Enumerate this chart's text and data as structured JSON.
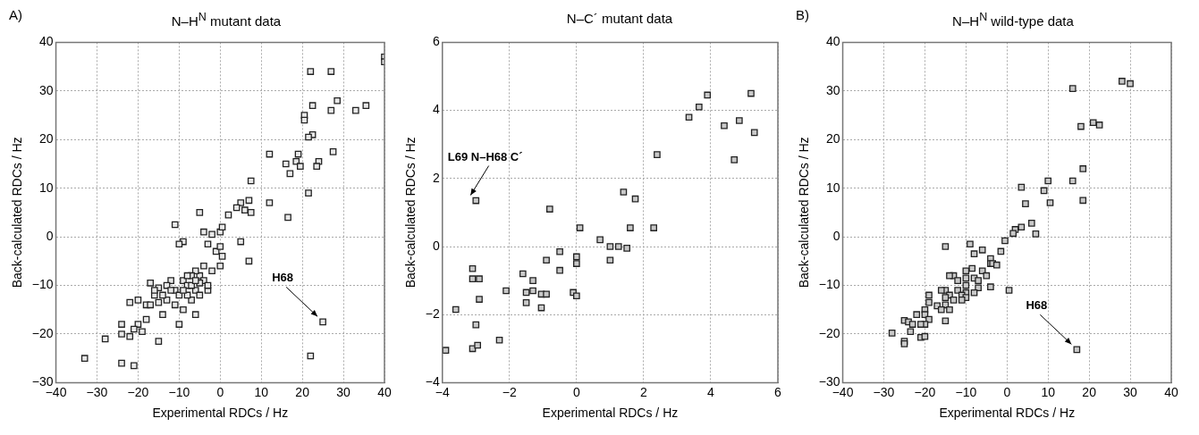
{
  "chart_data": [
    {
      "type": "scatter",
      "title": "N–H$^{N}$ mutant data",
      "xlabel": "Experimental RDCs / Hz",
      "ylabel": "Back-calculated RDCs / Hz",
      "marker": "square",
      "grid": true,
      "legend": false,
      "xlim": [
        -40,
        40
      ],
      "xticks": [
        -40,
        -30,
        -20,
        -10,
        0,
        10,
        20,
        30,
        40
      ],
      "ylim": [
        -30,
        40
      ],
      "yticks": [
        -30,
        -20,
        -10,
        0,
        10,
        20,
        30,
        40
      ],
      "annotations": [
        "A)",
        {
          "text": "H68",
          "x": 25,
          "y": -17.5
        }
      ],
      "series": [
        {
          "color": "#e8e8e8",
          "x": [
            22,
            27,
            40,
            40,
            22.5,
            28.5,
            27,
            33,
            35.5,
            20.5,
            20.5,
            22.5,
            21.5,
            12,
            19,
            16,
            18.5,
            19.5,
            24,
            23.5,
            17,
            27.5,
            7.5,
            21.5,
            12,
            16.5,
            5,
            7,
            6,
            7.5,
            -5,
            -11,
            4,
            2,
            5,
            7,
            0,
            0.5,
            -4,
            -2,
            -9,
            -10,
            -3,
            -1,
            0,
            0.5,
            0,
            -2,
            -4,
            -5,
            -6,
            -7,
            -9,
            -12,
            -13,
            -17,
            -15,
            -11,
            -10,
            -8,
            -6,
            -4,
            -3,
            -5,
            -7,
            -11,
            -13,
            -16,
            -18,
            -20,
            -22,
            -14,
            -17,
            -9,
            -10,
            -6,
            -18,
            -20,
            -21,
            -24,
            -24,
            -22,
            -19,
            -28,
            -15,
            -33,
            -24,
            -21,
            22,
            25,
            -14,
            -15,
            -12,
            -8,
            -7,
            -8,
            -16,
            -9,
            -5,
            -3,
            -6
          ],
          "values": [
            34,
            34,
            37,
            36,
            27,
            28,
            26,
            26,
            27,
            25,
            24,
            21,
            20.5,
            17,
            17,
            15,
            15.5,
            14.5,
            15.5,
            14.5,
            13,
            17.5,
            11.5,
            9,
            7,
            4,
            7,
            7.5,
            5.5,
            5,
            5,
            2.5,
            6,
            4.5,
            -1,
            -5,
            1,
            2,
            1,
            0.5,
            -1,
            -1.5,
            -1.5,
            -3,
            -2,
            -4,
            -6,
            -7,
            -6,
            -8,
            -7,
            -8,
            -9,
            -9,
            -10,
            -9.5,
            -10.5,
            -11,
            -12,
            -10,
            -11,
            -9,
            -11,
            -12,
            -13,
            -14,
            -13,
            -12,
            -14,
            -13,
            -13.5,
            -16,
            -14,
            -15,
            -18,
            -16,
            -17,
            -18,
            -19,
            -18,
            -20,
            -20.5,
            -19.5,
            -21,
            -21.5,
            -25,
            -26,
            -26.5,
            -24.5,
            -17.5,
            -12,
            -13.5,
            -11,
            -8,
            -10,
            -12,
            -11,
            -11,
            -9.5,
            -10,
            -9
          ]
        }
      ]
    },
    {
      "type": "scatter",
      "title": "N–C´ mutant data",
      "xlabel": "Experimental RDCs / Hz",
      "ylabel": "Back-calculated RDCs / Hz",
      "marker": "square",
      "grid": true,
      "legend": false,
      "xlim": [
        -4,
        6
      ],
      "xticks": [
        -4,
        -2,
        0,
        2,
        4,
        6
      ],
      "ylim": [
        -4,
        6
      ],
      "yticks": [
        -4,
        -2,
        0,
        2,
        4,
        6
      ],
      "annotations": [
        {
          "text": "L69 N–H68 C´",
          "x": -3,
          "y": 1.35
        }
      ],
      "series": [
        {
          "color": "#c8c8c8",
          "x": [
            3.9,
            5.2,
            3.65,
            3.35,
            4.4,
            4.85,
            5.3,
            4.7,
            2.4,
            -3,
            -0.8,
            1.4,
            1.75,
            0.1,
            1.6,
            2.3,
            0.7,
            1,
            1.25,
            1.5,
            -0.5,
            0,
            0,
            -0.9,
            1,
            -0.5,
            -3.1,
            -3.1,
            -2.9,
            -1.6,
            -1.3,
            -2.1,
            -1.5,
            -1.3,
            -1.05,
            -0.9,
            -0.1,
            0,
            -2.9,
            -1.5,
            -1.05,
            -3.6,
            -3,
            -2.3,
            -3.9,
            -3.1,
            -2.95
          ],
          "values": [
            4.45,
            4.5,
            4.1,
            3.8,
            3.55,
            3.7,
            3.35,
            2.55,
            2.7,
            1.35,
            1.1,
            1.6,
            1.4,
            0.55,
            0.55,
            0.55,
            0.2,
            0,
            0,
            -0.05,
            -0.15,
            -0.3,
            -0.5,
            -0.4,
            -0.4,
            -0.7,
            -0.65,
            -0.95,
            -0.95,
            -0.8,
            -1,
            -1.3,
            -1.35,
            -1.3,
            -1.4,
            -1.4,
            -1.35,
            -1.45,
            -1.55,
            -1.65,
            -1.8,
            -1.85,
            -2.3,
            -2.75,
            -3.05,
            -3,
            -2.9
          ]
        }
      ]
    },
    {
      "type": "scatter",
      "title": "N–H$^{N}$ wild-type data",
      "xlabel": "Experimental RDCs / Hz",
      "ylabel": "Back-calculated RDCs / Hz",
      "marker": "square",
      "grid": true,
      "legend": false,
      "xlim": [
        -40,
        40
      ],
      "xticks": [
        -40,
        -30,
        -20,
        -10,
        0,
        10,
        20,
        30,
        40
      ],
      "ylim": [
        -30,
        40
      ],
      "yticks": [
        -30,
        -20,
        -10,
        0,
        10,
        20,
        30,
        40
      ],
      "annotations": [
        "B)",
        {
          "text": "H68",
          "x": 17,
          "y": -23.2
        }
      ],
      "series": [
        {
          "color": "#c8c8c8",
          "x": [
            28,
            30,
            16,
            21,
            22.5,
            18,
            18.5,
            10,
            16,
            3.5,
            9,
            18.5,
            4.5,
            10.5,
            6,
            3.5,
            2,
            1.5,
            7,
            -0.5,
            -15,
            -9,
            -6,
            -1.5,
            -8,
            -4,
            -4,
            -3.5,
            -2.5,
            -8.5,
            -10,
            -6,
            -5,
            -13,
            -14,
            -12,
            -8,
            -10,
            -7,
            -10,
            -7,
            -4,
            0.5,
            -15,
            -16,
            -12,
            -10,
            -8,
            -11,
            -14,
            -19,
            -15,
            -13,
            -10,
            -11,
            -19,
            -17,
            -15,
            -20,
            -16,
            -14,
            -20,
            -22,
            -19,
            -15,
            -25,
            -24,
            -20,
            -23,
            -21,
            -28,
            -23.5,
            -25,
            -25,
            -21,
            -20,
            17
          ],
          "values": [
            32,
            31.5,
            30.5,
            23.5,
            23,
            22.7,
            14,
            11.5,
            11.5,
            10.2,
            9.5,
            7.5,
            6.8,
            7,
            2.8,
            2,
            1.5,
            0.7,
            0.6,
            -0.8,
            -2,
            -1.5,
            -2.7,
            -3,
            -3.5,
            -4.5,
            -5.5,
            -5.5,
            -5.8,
            -6.5,
            -7,
            -7,
            -8,
            -8,
            -8,
            -9,
            -8.5,
            -8.5,
            -9,
            -10,
            -10.5,
            -10.3,
            -11,
            -11,
            -11,
            -11,
            -11.5,
            -11.5,
            -12,
            -12,
            -12,
            -12.5,
            -13,
            -12.5,
            -13,
            -13.5,
            -14.2,
            -14,
            -15,
            -15,
            -15,
            -16,
            -16,
            -17,
            -17.3,
            -17.2,
            -17.5,
            -18,
            -18,
            -18,
            -19.8,
            -19.5,
            -21.5,
            -22,
            -20.7,
            -20.5,
            -23.2
          ]
        }
      ]
    }
  ]
}
